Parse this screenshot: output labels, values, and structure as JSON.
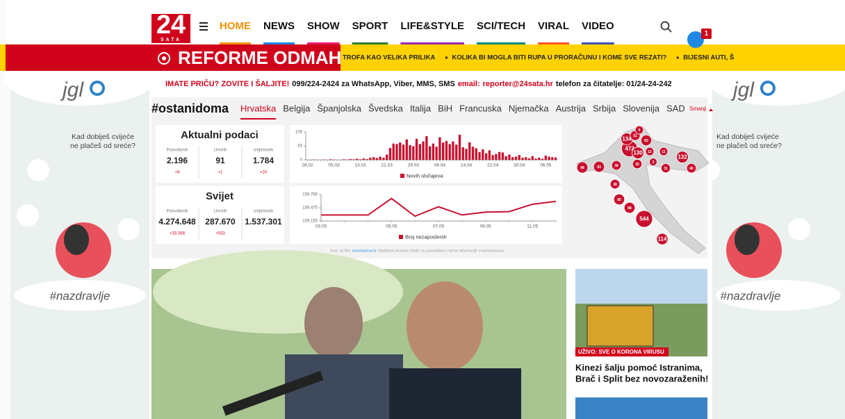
{
  "header": {
    "logo": "24",
    "logo_sub": "SATA",
    "nav": [
      "HOME",
      "NEWS",
      "SHOW",
      "SPORT",
      "LIFE&STYLE",
      "SCI/TECH",
      "VIRAL",
      "VIDEO"
    ],
    "notifications": "1"
  },
  "banner": {
    "title": "REFORME ODMAH",
    "ticker": [
      "TROFA KAO VELIKA PRILIKA",
      "KOLIKA BI MOGLA BITI RUPA U PRORAČUNU I KOME SVE REZATI?",
      "BIJESNI AUTI, Š"
    ]
  },
  "tipline": {
    "lead": "IMATE PRIČU? ZOVITE I ŠALJITE!",
    "phone": "099/224-2424 za WhatsApp, Viber, MMS, SMS",
    "email_label": "email:",
    "email": "reporter@24sata.hr",
    "reader_phone": "telefon za čitatelje: 01/24-24-242"
  },
  "ads": {
    "brand": "jgl",
    "tagline": [
      "Kad dobiješ cvijeće",
      "ne plačeš od sreće?"
    ],
    "hashtag": "#nazdravlje"
  },
  "covid": {
    "hashtag": "#ostanidoma",
    "tabs": [
      "Hrvatska",
      "Belgija",
      "Španjolska",
      "Švedska",
      "Italija",
      "BiH",
      "Francuska",
      "Njemačka",
      "Austrija",
      "Srbija",
      "Slovenija",
      "SAD"
    ],
    "collapse": "Smanji",
    "croatia": {
      "title": "Aktualni podaci",
      "stats": [
        {
          "label": "Potvrđenih",
          "value": "2.196",
          "change": "+9"
        },
        {
          "label": "Umrlih",
          "value": "91",
          "change": "+1"
        },
        {
          "label": "Izliječenih",
          "value": "1.784",
          "change": "+20"
        }
      ]
    },
    "world": {
      "title": "Svijet",
      "stats": [
        {
          "label": "Potvrđenih",
          "value": "4.274.648",
          "change": "+33.358"
        },
        {
          "label": "Umrlih",
          "value": "287.670",
          "change": "+533"
        },
        {
          "label": "Izliječenih",
          "value": "1.537.301"
        }
      ]
    },
    "new_cases": {
      "type": "bar",
      "legend": "Novih slučajeva",
      "color": "#c8102e",
      "categories": [
        "28.02",
        null,
        null,
        null,
        null,
        null,
        null,
        null,
        "05.03",
        null,
        null,
        null,
        null,
        null,
        null,
        null,
        "13.03",
        null,
        null,
        null,
        null,
        null,
        null,
        null,
        "21.03",
        null,
        null,
        null,
        null,
        null,
        null,
        null,
        "29.03",
        null,
        null,
        null,
        null,
        null,
        null,
        null,
        "06.04",
        null,
        null,
        null,
        null,
        null,
        null,
        null,
        "14.04",
        null,
        null,
        null,
        null,
        null,
        null,
        null,
        "22.04",
        null,
        null,
        null,
        null,
        null,
        null,
        null,
        "30.04",
        null,
        null,
        null,
        null,
        null,
        null,
        null,
        "06.05",
        null,
        null,
        null
      ],
      "values": [
        0,
        0,
        1,
        0,
        0,
        1,
        0,
        2,
        1,
        0,
        0,
        2,
        1,
        3,
        2,
        4,
        2,
        5,
        3,
        8,
        10,
        7,
        12,
        8,
        20,
        45,
        62,
        60,
        66,
        58,
        78,
        56,
        52,
        80,
        60,
        70,
        90,
        52,
        62,
        50,
        86,
        66,
        72,
        60,
        70,
        58,
        96,
        48,
        42,
        67,
        50,
        44,
        30,
        40,
        25,
        36,
        18,
        22,
        30,
        28,
        14,
        20,
        10,
        12,
        18,
        8,
        10,
        6,
        14,
        5,
        8,
        4,
        16,
        12,
        10,
        9
      ],
      "ylim": [
        0,
        106
      ],
      "yticks": [
        0,
        53,
        106
      ]
    },
    "unemployment": {
      "type": "line",
      "legend": "Broj nezaposlenih",
      "color": "#c8102e",
      "categories": [
        "03.05",
        null,
        null,
        "05.05",
        null,
        "07.05",
        null,
        "09.05",
        null,
        "11.05",
        null
      ],
      "values": [
        159300,
        159300,
        159300,
        159700,
        159270,
        159500,
        159300,
        159370,
        159380,
        159560,
        159630
      ],
      "ylim": [
        159155,
        159795
      ],
      "yticks": [
        {
          "value": 159155,
          "label": "159.155"
        },
        {
          "value": 159475,
          "label": "159.475"
        },
        {
          "value": 159795,
          "label": "159.795"
        }
      ]
    },
    "map": [
      472,
      134,
      51,
      9,
      83,
      130,
      12,
      11,
      35,
      3,
      31,
      132,
      40,
      98,
      93,
      38,
      38,
      85,
      88,
      544,
      114
    ],
    "source": {
      "prefix": "Izvor za RH:",
      "link": "koronavirus.hr",
      "text": "Službena stranica Vlade za pravodobne i točne informacije o koronavirusu"
    }
  },
  "articles": [
    {
      "label": "UŽIVO: SVE O KORONA VIRUSU",
      "headline": [
        "Kinezi šalju pomoć Istranima,",
        "Brač i Split bez novozaraženih!"
      ]
    }
  ]
}
